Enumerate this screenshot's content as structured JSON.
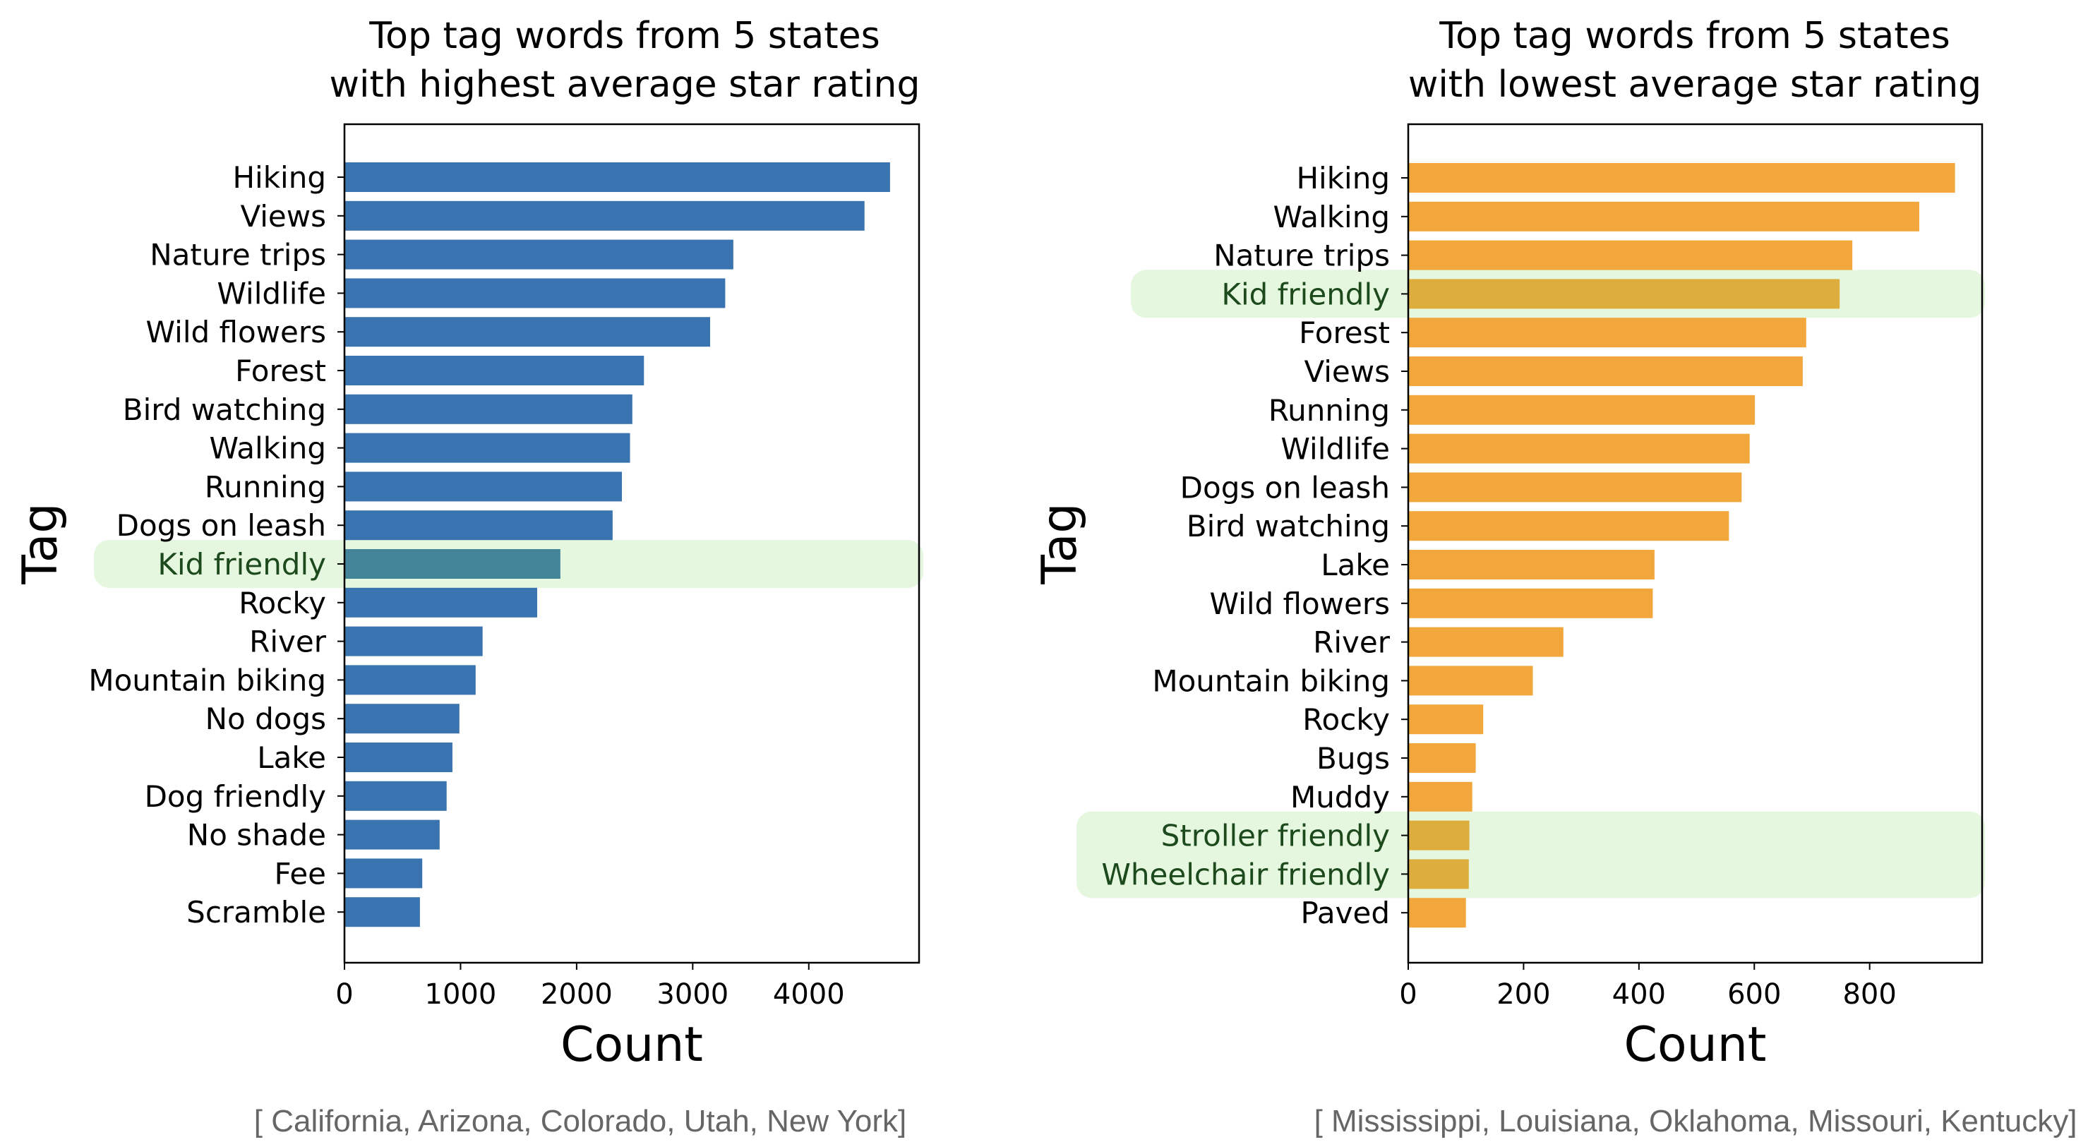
{
  "chart_data": [
    {
      "type": "bar",
      "orientation": "horizontal",
      "title_lines": [
        "Top tag words from 5 states",
        "with highest average star rating"
      ],
      "xlabel": "Count",
      "ylabel": "Tag",
      "xlim": [
        0,
        4950
      ],
      "xticks": [
        0,
        1000,
        2000,
        3000,
        4000
      ],
      "xtick_labels": [
        "0",
        "1000",
        "2000",
        "3000",
        "4000"
      ],
      "bar_color": "#3a74b0",
      "highlight_bar_color": "#44859a",
      "highlight_band_color": "#e6f7e0",
      "categories": [
        "Hiking",
        "Views",
        "Nature trips",
        "Wildlife",
        "Wild flowers",
        "Forest",
        "Bird watching",
        "Walking",
        "Running",
        "Dogs on leash",
        "Kid friendly",
        "Rocky",
        "River",
        "Mountain biking",
        "No dogs",
        "Lake",
        "Dog friendly",
        "No shade",
        "Fee",
        "Scramble"
      ],
      "values": [
        4700,
        4480,
        3350,
        3280,
        3150,
        2580,
        2480,
        2460,
        2390,
        2310,
        1860,
        1660,
        1190,
        1130,
        990,
        930,
        880,
        820,
        670,
        650
      ],
      "highlighted": [
        "Kid friendly"
      ],
      "caption": "[ California, Arizona, Colorado, Utah, New York]"
    },
    {
      "type": "bar",
      "orientation": "horizontal",
      "title_lines": [
        "Top tag words from 5 states",
        "with lowest average star rating"
      ],
      "xlabel": "Count",
      "ylabel": "Tag",
      "xlim": [
        0,
        995
      ],
      "xticks": [
        0,
        200,
        400,
        600,
        800
      ],
      "xtick_labels": [
        "0",
        "200",
        "400",
        "600",
        "800"
      ],
      "bar_color": "#f1a73c",
      "highlight_bar_color": "#ddae3e",
      "highlight_band_color": "#e6f7e0",
      "categories": [
        "Hiking",
        "Walking",
        "Nature trips",
        "Kid friendly",
        "Forest",
        "Views",
        "Running",
        "Wildlife",
        "Dogs on leash",
        "Bird watching",
        "Lake",
        "Wild flowers",
        "River",
        "Mountain biking",
        "Rocky",
        "Bugs",
        "Muddy",
        "Stroller friendly",
        "Wheelchair friendly",
        "Paved"
      ],
      "values": [
        948,
        886,
        770,
        748,
        690,
        684,
        601,
        592,
        578,
        556,
        427,
        424,
        269,
        216,
        130,
        117,
        111,
        106,
        105,
        100
      ],
      "highlighted": [
        "Kid friendly",
        "Stroller friendly",
        "Wheelchair friendly"
      ],
      "caption": "[ Mississippi, Louisiana, Oklahoma, Missouri, Kentucky]"
    }
  ]
}
